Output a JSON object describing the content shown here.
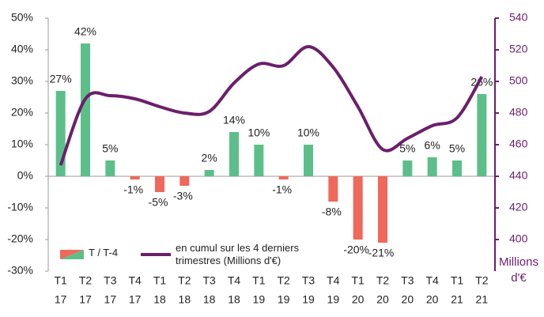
{
  "chart_data": {
    "type": "bar",
    "categories": [
      [
        "T1",
        "17"
      ],
      [
        "T2",
        "17"
      ],
      [
        "T3",
        "17"
      ],
      [
        "T4",
        "17"
      ],
      [
        "T1",
        "18"
      ],
      [
        "T2",
        "18"
      ],
      [
        "T3",
        "18"
      ],
      [
        "T4",
        "18"
      ],
      [
        "T1",
        "19"
      ],
      [
        "T2",
        "19"
      ],
      [
        "T3",
        "19"
      ],
      [
        "T4",
        "19"
      ],
      [
        "T1",
        "20"
      ],
      [
        "T2",
        "20"
      ],
      [
        "T3",
        "20"
      ],
      [
        "T4",
        "20"
      ],
      [
        "T1",
        "21"
      ],
      [
        "T2",
        "21"
      ]
    ],
    "series": [
      {
        "name": "T / T-4",
        "type": "bar",
        "positive_color": "#5cbf8a",
        "negative_color": "#f0685a",
        "values": [
          27,
          42,
          5,
          -1,
          -5,
          -3,
          2,
          14,
          10,
          -1,
          10,
          -8,
          -20,
          -21,
          5,
          6,
          5,
          26
        ],
        "value_labels": [
          "27%",
          "42%",
          "5%",
          "-1%",
          "-5%",
          "-3%",
          "2%",
          "14%",
          "10%",
          "-1%",
          "10%",
          "-8%",
          "-20%",
          "-21%",
          "5%",
          "6%",
          "5%",
          "26%"
        ]
      },
      {
        "name": "en cumul sur les 4 derniers trimestres (Millions d'€)",
        "type": "line",
        "axis": "y2",
        "color": "#6b1f6b",
        "values": [
          447,
          489,
          491,
          489,
          484,
          480,
          481,
          499,
          511,
          510,
          522,
          509,
          484,
          457,
          464,
          472,
          477,
          503
        ]
      }
    ],
    "ylim": [
      -30,
      50
    ],
    "yticks": [
      {
        "value": -30,
        "label": "-30%"
      },
      {
        "value": -20,
        "label": "-20%"
      },
      {
        "value": -10,
        "label": "-10%"
      },
      {
        "value": 0,
        "label": "0%"
      },
      {
        "value": 10,
        "label": "10%"
      },
      {
        "value": 20,
        "label": "20%"
      },
      {
        "value": 30,
        "label": "30%"
      },
      {
        "value": 40,
        "label": "40%"
      },
      {
        "value": 50,
        "label": "50%"
      }
    ],
    "y2lim": [
      380,
      540
    ],
    "y2ticks": [
      400,
      420,
      440,
      460,
      480,
      500,
      520,
      540
    ],
    "y2label": "Millions d'€",
    "y2color": "#6b1f6b",
    "legend": "bottom-left"
  }
}
